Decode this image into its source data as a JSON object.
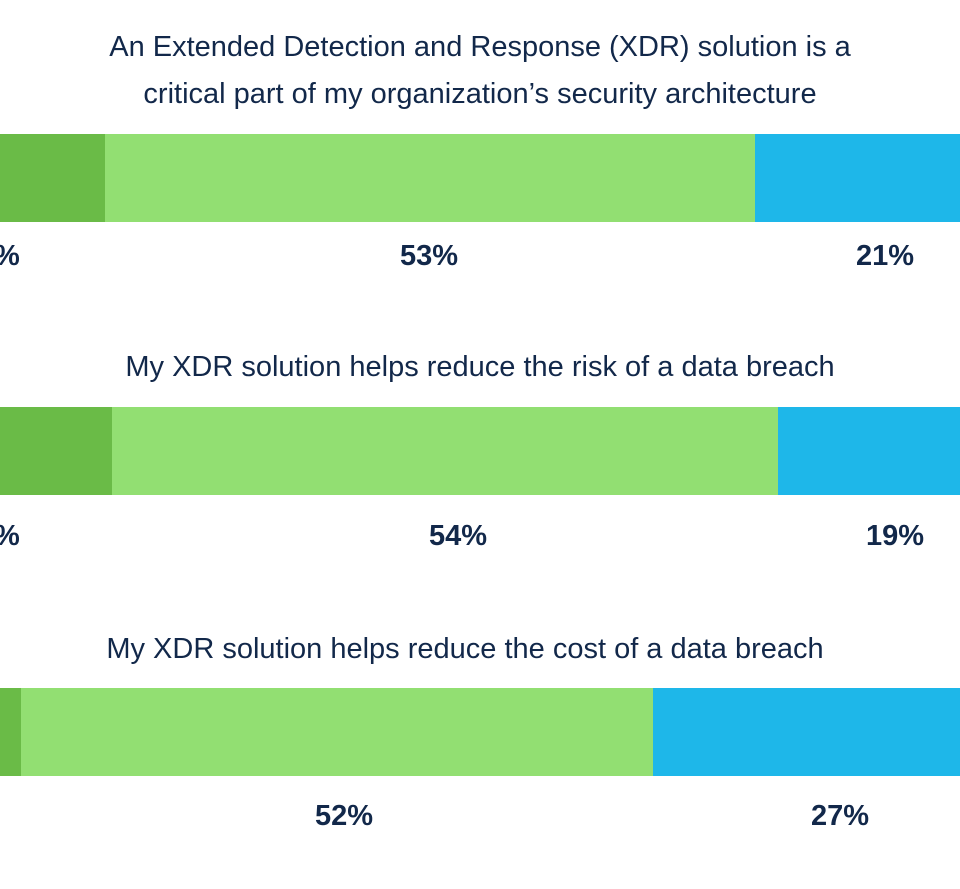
{
  "colors": {
    "strongly_agree": "#6abb47",
    "agree": "#92df72",
    "neutral": "#1eb7e9",
    "text": "#12284a"
  },
  "chart_data": [
    {
      "type": "bar",
      "orientation": "horizontal-stacked",
      "title_lines": [
        "An Extended Detection and Response (XDR) solution is a",
        "critical part of my organization’s security architecture"
      ],
      "segments": [
        {
          "color": "strongly_agree",
          "label": "%"
        },
        {
          "color": "agree",
          "value": 53,
          "label": "53%"
        },
        {
          "color": "neutral",
          "value": 21,
          "label": "21%"
        }
      ]
    },
    {
      "type": "bar",
      "orientation": "horizontal-stacked",
      "title_lines": [
        "My XDR solution helps reduce the risk of a data breach"
      ],
      "segments": [
        {
          "color": "strongly_agree",
          "label": "%"
        },
        {
          "color": "agree",
          "value": 54,
          "label": "54%"
        },
        {
          "color": "neutral",
          "value": 19,
          "label": "19%"
        }
      ]
    },
    {
      "type": "bar",
      "orientation": "horizontal-stacked",
      "title_lines": [
        "My XDR solution helps reduce the cost of a data breach"
      ],
      "segments": [
        {
          "color": "strongly_agree",
          "label": ""
        },
        {
          "color": "agree",
          "value": 52,
          "label": "52%"
        },
        {
          "color": "neutral",
          "value": 27,
          "label": "27%"
        }
      ]
    }
  ]
}
